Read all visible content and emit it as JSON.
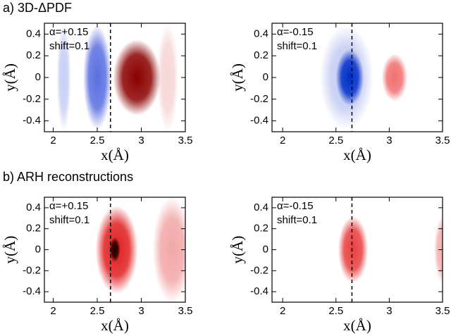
{
  "section_labels": [
    "a) 3D-ΔPDF",
    "b) ARH reconstructions"
  ],
  "chart_data": [
    {
      "type": "heatmap",
      "xlabel": "x(Å)",
      "ylabel": "y(Å)",
      "annotations": [
        "α=+0.15",
        "shift=0.1"
      ],
      "vline": 2.65,
      "xlim": [
        1.9,
        3.5
      ],
      "ylim": [
        -0.5,
        0.5
      ],
      "xticks": [
        2,
        2.5,
        3,
        3.5
      ],
      "yticks": [
        -0.4,
        -0.2,
        0,
        0.2,
        0.4
      ],
      "features": [
        {
          "x": 2.12,
          "y": 0,
          "rx": 0.08,
          "ry": 0.5,
          "color": "#c8cff5"
        },
        {
          "x": 2.5,
          "y": 0,
          "rx": 0.16,
          "ry": 0.48,
          "color": "#5a6fe0"
        },
        {
          "x": 3.3,
          "y": 0,
          "rx": 0.12,
          "ry": 0.5,
          "color": "#f7d6d6"
        },
        {
          "x": 2.95,
          "y": 0,
          "rx": 0.27,
          "ry": 0.35,
          "color": "#8b0000"
        }
      ]
    },
    {
      "type": "heatmap",
      "xlabel": "x(Å)",
      "ylabel": "y(Å)",
      "annotations": [
        "α=-0.15",
        "shift=0.1"
      ],
      "vline": 2.65,
      "xlim": [
        1.9,
        3.5
      ],
      "ylim": [
        -0.5,
        0.5
      ],
      "xticks": [
        2,
        2.5,
        3,
        3.5
      ],
      "yticks": [
        -0.4,
        -0.2,
        0,
        0.2,
        0.4
      ],
      "features": [
        {
          "x": 2.6,
          "y": 0,
          "rx": 0.25,
          "ry": 0.48,
          "color": "#c5ccf3"
        },
        {
          "x": 2.63,
          "y": 0,
          "rx": 0.13,
          "ry": 0.26,
          "color": "#0030c8"
        },
        {
          "x": 3.05,
          "y": 0,
          "rx": 0.12,
          "ry": 0.22,
          "color": "#f07070"
        }
      ]
    },
    {
      "type": "heatmap",
      "xlabel": "x(Å)",
      "ylabel": "y(Å)",
      "annotations": [
        "α=+0.15",
        "shift=0.1"
      ],
      "vline": 2.65,
      "xlim": [
        1.9,
        3.5
      ],
      "ylim": [
        -0.5,
        0.5
      ],
      "xticks": [
        2,
        2.5,
        3,
        3.5
      ],
      "yticks": [
        -0.4,
        -0.2,
        0,
        0.2,
        0.4
      ],
      "features": [
        {
          "x": 3.35,
          "y": 0,
          "rx": 0.22,
          "ry": 0.5,
          "color": "#f2a8a8"
        },
        {
          "x": 2.72,
          "y": 0,
          "rx": 0.24,
          "ry": 0.42,
          "color": "#e02020"
        },
        {
          "x": 2.7,
          "y": 0,
          "rx": 0.06,
          "ry": 0.12,
          "color": "#200000"
        }
      ]
    },
    {
      "type": "heatmap",
      "xlabel": "x(Å)",
      "ylabel": "y(Å)",
      "annotations": [
        "α=-0.15",
        "shift=0.1"
      ],
      "vline": 2.65,
      "xlim": [
        1.9,
        3.5
      ],
      "ylim": [
        -0.5,
        0.5
      ],
      "xticks": [
        2,
        2.5,
        3,
        3.5
      ],
      "yticks": [
        -0.4,
        -0.2,
        0,
        0.2,
        0.4
      ],
      "features": [
        {
          "x": 2.66,
          "y": 0,
          "rx": 0.14,
          "ry": 0.32,
          "color": "#e84040"
        },
        {
          "x": 3.5,
          "y": 0,
          "rx": 0.08,
          "ry": 0.32,
          "color": "#f2b0b0"
        }
      ]
    }
  ]
}
